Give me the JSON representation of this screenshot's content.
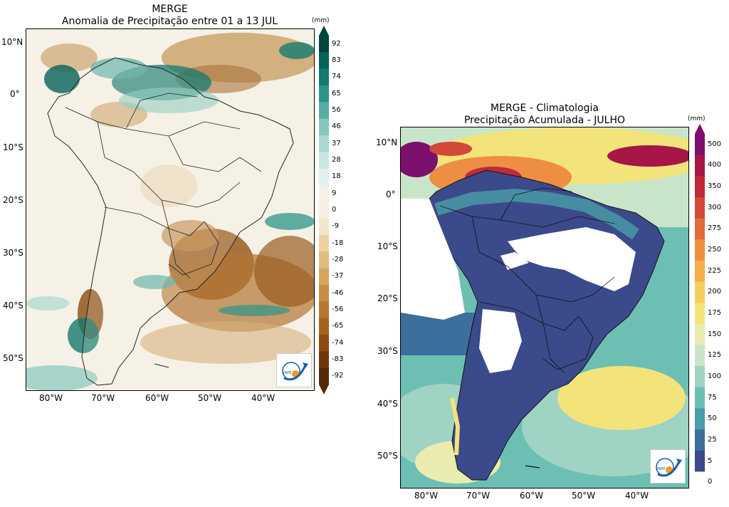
{
  "left_map": {
    "title_line1": "MERGE",
    "title_line2": "Anomalia de Precipitação entre 01 a 13 JUL",
    "unit": "(mm)",
    "lat_labels": [
      "10°N",
      "0°",
      "10°S",
      "20°S",
      "30°S",
      "40°S",
      "50°S"
    ],
    "lon_labels": [
      "80°W",
      "70°W",
      "60°W",
      "50°W",
      "40°W"
    ],
    "colorbar_levels": [
      "92",
      "83",
      "74",
      "65",
      "56",
      "46",
      "37",
      "28",
      "18",
      "9",
      "0",
      "-9",
      "-18",
      "-28",
      "-37",
      "-46",
      "-56",
      "-65",
      "-74",
      "-83",
      "-92"
    ],
    "colorbar_colors": [
      "#01463a",
      "#06635a",
      "#157a70",
      "#2d948a",
      "#58ada4",
      "#85c8be",
      "#a9d9d2",
      "#c8e7e2",
      "#e1f1ee",
      "#f2f2e9",
      "#f6efe0",
      "#f3e5c7",
      "#ead2a4",
      "#dfbd80",
      "#d4a760",
      "#c68f43",
      "#b7782e",
      "#a5621f",
      "#8b4b12",
      "#6f380a",
      "#542a05"
    ],
    "logo_text": "INPE",
    "orientation": "portrait"
  },
  "right_map": {
    "title_line1": "MERGE - Climatologia",
    "title_line2": "Precipitação Acumulada - JULHO",
    "unit": "(mm)",
    "lat_labels": [
      "10°N",
      "0°",
      "10°S",
      "20°S",
      "30°S",
      "40°S",
      "50°S"
    ],
    "lon_labels": [
      "80°W",
      "70°W",
      "60°W",
      "50°W",
      "40°W"
    ],
    "colorbar_levels": [
      "500",
      "400",
      "350",
      "300",
      "275",
      "250",
      "225",
      "200",
      "175",
      "150",
      "125",
      "100",
      "75",
      "50",
      "25",
      "5",
      "0"
    ],
    "colorbar_colors": [
      "#7d0f6e",
      "#a61646",
      "#c0293a",
      "#d4483a",
      "#e26a3c",
      "#ee8e42",
      "#f5b049",
      "#f4cf5c",
      "#f2e47a",
      "#e9ebb0",
      "#c9e5c9",
      "#9fd3c3",
      "#6dbfb3",
      "#4a9ea7",
      "#3c6f9b",
      "#3b4a8a",
      "#ffffff"
    ],
    "logo_text": "INPE"
  }
}
